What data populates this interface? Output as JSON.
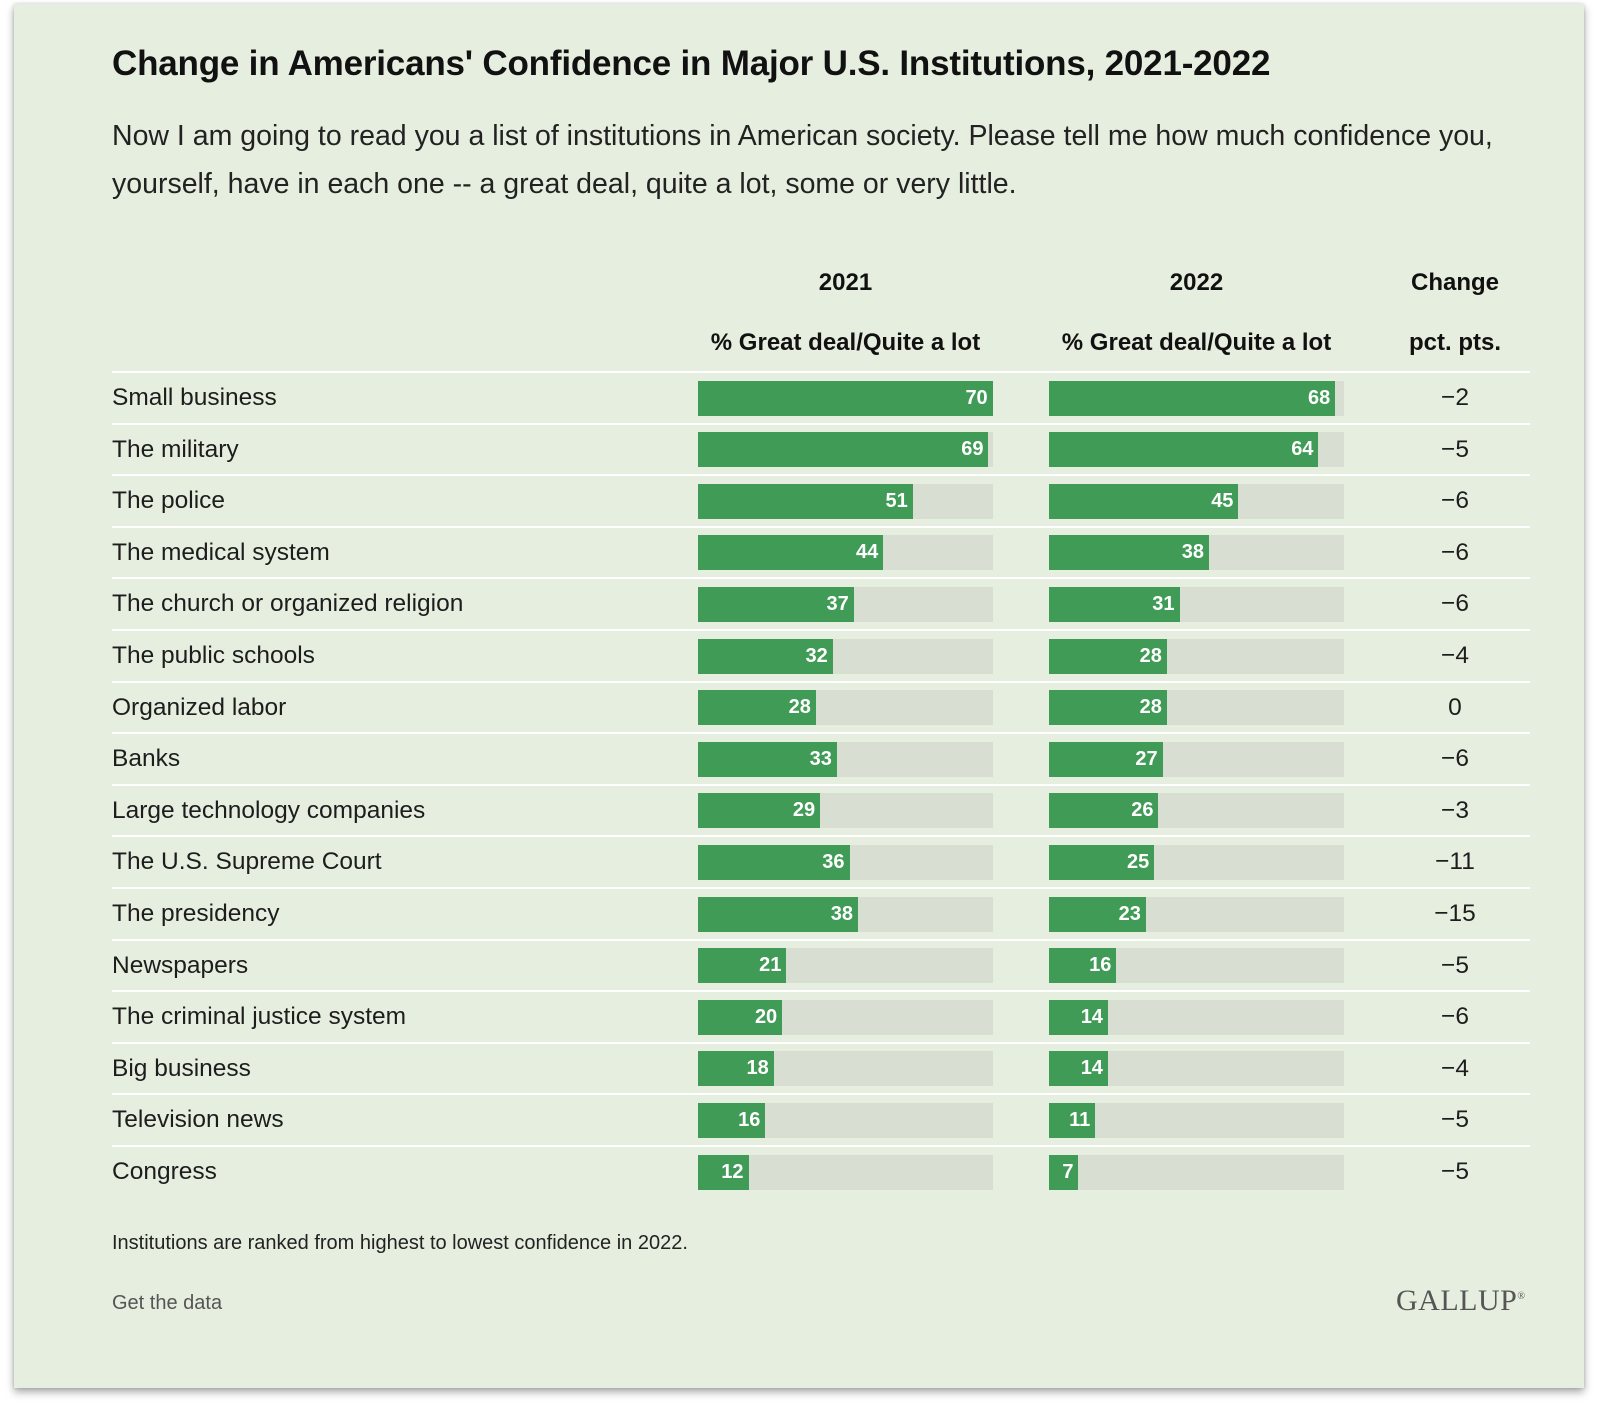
{
  "colors": {
    "background": "#e6efdf",
    "bar": "#3f9b56",
    "track": "#d8dfd2"
  },
  "title": "Change in Americans' Confidence in Major U.S. Institutions, 2021-2022",
  "subtitle": "Now I am going to read you a list of institutions in American society. Please tell me how much confidence you, yourself, have in each one -- a great deal, quite a lot, some or very little.",
  "columns": {
    "y2021": {
      "year": "2021",
      "sub": "% Great deal/Quite a lot"
    },
    "y2022": {
      "year": "2022",
      "sub": "% Great deal/Quite a lot"
    },
    "change": {
      "line1": "Change",
      "line2": "pct. pts."
    }
  },
  "chart_data": {
    "type": "bar",
    "orientation": "horizontal",
    "xlim": [
      0,
      100
    ],
    "categories": [
      "Small business",
      "The military",
      "The police",
      "The medical system",
      "The church or organized religion",
      "The public schools",
      "Organized labor",
      "Banks",
      "Large technology companies",
      "The U.S. Supreme Court",
      "The presidency",
      "Newspapers",
      "The criminal justice system",
      "Big business",
      "Television news",
      "Congress"
    ],
    "series": [
      {
        "name": "2021",
        "values": [
          70,
          69,
          51,
          44,
          37,
          32,
          28,
          33,
          29,
          36,
          38,
          21,
          20,
          18,
          16,
          12
        ]
      },
      {
        "name": "2022",
        "values": [
          68,
          64,
          45,
          38,
          31,
          28,
          28,
          27,
          26,
          25,
          23,
          16,
          14,
          14,
          11,
          7
        ]
      }
    ],
    "change": [
      "−2",
      "−5",
      "−6",
      "−6",
      "−6",
      "−4",
      "0",
      "−6",
      "−3",
      "−11",
      "−15",
      "−5",
      "−6",
      "−4",
      "−5",
      "−5"
    ]
  },
  "note": "Institutions are ranked from highest to lowest confidence in 2022.",
  "get_data_label": "Get the data",
  "logo": {
    "text": "GALLUP",
    "mark": "®"
  }
}
